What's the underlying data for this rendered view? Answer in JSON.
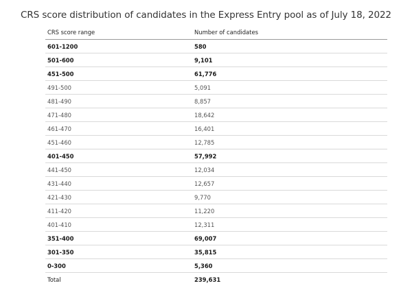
{
  "title": "CRS score distribution of candidates in the Express Entry pool as of July 18, 2022",
  "columns": [
    "CRS score range",
    "Number of candidates"
  ],
  "rows": [
    {
      "range": "601-1200",
      "count": "580",
      "bold": true
    },
    {
      "range": "501-600",
      "count": "9,101",
      "bold": true
    },
    {
      "range": "451-500",
      "count": "61,776",
      "bold": true
    },
    {
      "range": "491-500",
      "count": "5,091",
      "bold": false
    },
    {
      "range": "481-490",
      "count": "8,857",
      "bold": false
    },
    {
      "range": "471-480",
      "count": "18,642",
      "bold": false
    },
    {
      "range": "461-470",
      "count": "16,401",
      "bold": false
    },
    {
      "range": "451-460",
      "count": "12,785",
      "bold": false
    },
    {
      "range": "401-450",
      "count": "57,992",
      "bold": true
    },
    {
      "range": "441-450",
      "count": "12,034",
      "bold": false
    },
    {
      "range": "431-440",
      "count": "12,657",
      "bold": false
    },
    {
      "range": "421-430",
      "count": "9,770",
      "bold": false
    },
    {
      "range": "411-420",
      "count": "11,220",
      "bold": false
    },
    {
      "range": "401-410",
      "count": "12,311",
      "bold": false
    },
    {
      "range": "351-400",
      "count": "69,007",
      "bold": true
    },
    {
      "range": "301-350",
      "count": "35,815",
      "bold": true
    },
    {
      "range": "0-300",
      "count": "5,360",
      "bold": true
    }
  ],
  "total": {
    "label": "Total",
    "value": "239,631"
  }
}
